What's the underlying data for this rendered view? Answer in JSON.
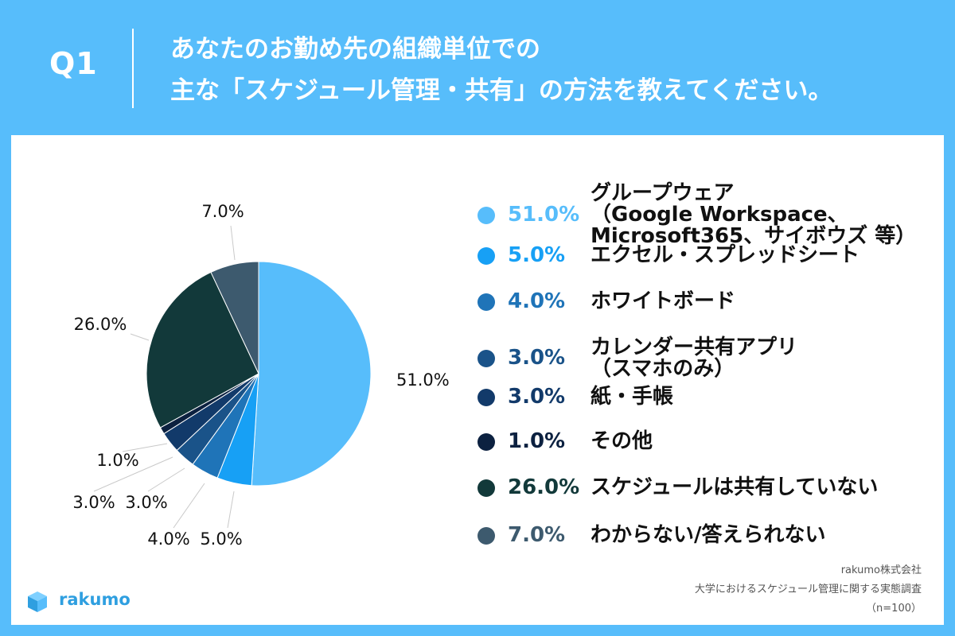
{
  "header": {
    "question_label": "Q1",
    "title_line1": "あなたのお勤め先の組織単位での",
    "title_line2": "主な「スケジュール管理・共有」の方法を教えてください。"
  },
  "chart_data": {
    "type": "pie",
    "slices": [
      {
        "label_lines": [
          "グループウェア",
          "（Google Workspace、",
          "Microsoft365、サイボウズ 等）"
        ],
        "value": 51.0,
        "pct_text": "51.0%",
        "color": "#57bdfb"
      },
      {
        "label_lines": [
          "エクセル・スプレッドシート"
        ],
        "value": 5.0,
        "pct_text": "5.0%",
        "color": "#17a0f5"
      },
      {
        "label_lines": [
          "ホワイトボード"
        ],
        "value": 4.0,
        "pct_text": "4.0%",
        "color": "#1f74b8"
      },
      {
        "label_lines": [
          "カレンダー共有アプリ",
          "（スマホのみ）"
        ],
        "value": 3.0,
        "pct_text": "3.0%",
        "color": "#1a5389"
      },
      {
        "label_lines": [
          "紙・手帳"
        ],
        "value": 3.0,
        "pct_text": "3.0%",
        "color": "#123a6a"
      },
      {
        "label_lines": [
          "その他"
        ],
        "value": 1.0,
        "pct_text": "1.0%",
        "color": "#0c2140"
      },
      {
        "label_lines": [
          "スケジュールは共有していない"
        ],
        "value": 26.0,
        "pct_text": "26.0%",
        "color": "#12393a"
      },
      {
        "label_lines": [
          "わからない/答えられない"
        ],
        "value": 7.0,
        "pct_text": "7.0%",
        "color": "#3d5a6e"
      }
    ],
    "start": "top, clockwise",
    "legend_position": "right"
  },
  "logo": {
    "text": "rakumo",
    "color": "#2f9fe0"
  },
  "source": {
    "company": "rakumo株式会社",
    "survey": "大学におけるスケジュール管理に関する実態調査",
    "sample": "（n=100）"
  }
}
